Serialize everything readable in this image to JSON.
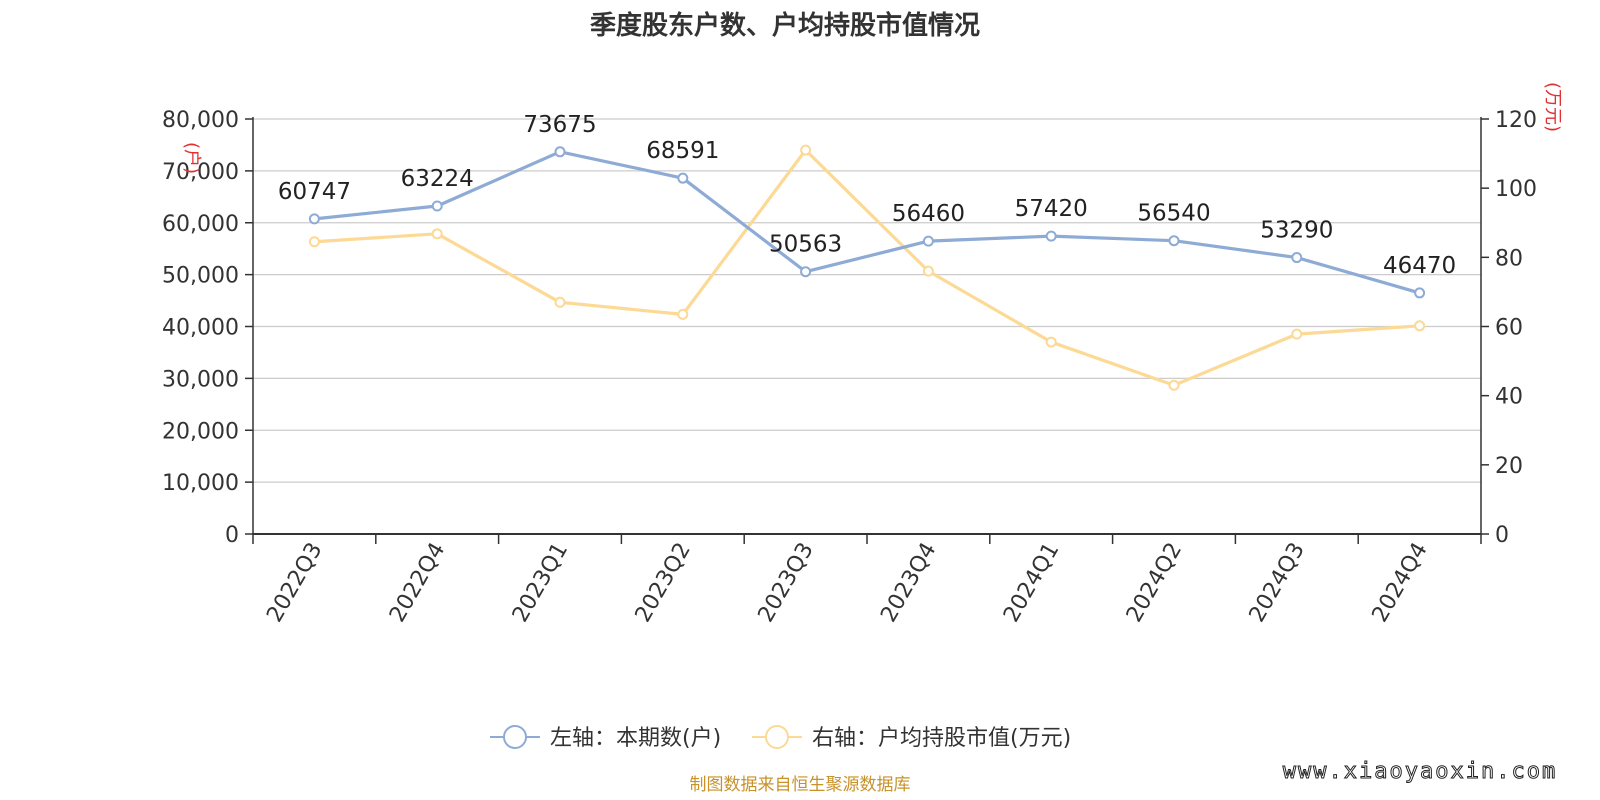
{
  "chart_data": {
    "type": "line",
    "title": "季度股东户数、户均持股市值情况",
    "categories": [
      "2022Q3",
      "2022Q4",
      "2023Q1",
      "2023Q2",
      "2023Q3",
      "2023Q4",
      "2024Q1",
      "2024Q2",
      "2024Q3",
      "2024Q4"
    ],
    "left_axis": {
      "unit": "(户)",
      "ylim": [
        0,
        80000
      ],
      "ticks": [
        "0",
        "10,000",
        "20,000",
        "30,000",
        "40,000",
        "50,000",
        "60,000",
        "70,000",
        "80,000"
      ]
    },
    "right_axis": {
      "unit": "(万元)",
      "ylim": [
        0,
        120
      ],
      "ticks": [
        "0",
        "20",
        "40",
        "60",
        "80",
        "100",
        "120"
      ]
    },
    "series": [
      {
        "name": "左轴：本期数(户)",
        "axis": "left",
        "color": "#8eabd6",
        "values": [
          60747,
          63224,
          73675,
          68591,
          50563,
          56460,
          57420,
          56540,
          53290,
          46470
        ],
        "labels": [
          "60747",
          "63224",
          "73675",
          "68591",
          "50563",
          "56460",
          "57420",
          "56540",
          "53290",
          "46470"
        ]
      },
      {
        "name": "右轴：户均持股市值(万元)",
        "axis": "right",
        "color": "#fcd994",
        "values": [
          84.5,
          86.8,
          67.0,
          63.5,
          111.0,
          76.0,
          55.5,
          43.0,
          57.8,
          60.2
        ]
      }
    ],
    "grid": true,
    "legend": "bottom-center",
    "source": "制图数据来自恒生聚源数据库",
    "watermark": "www.xiaoyaoxin.com"
  }
}
